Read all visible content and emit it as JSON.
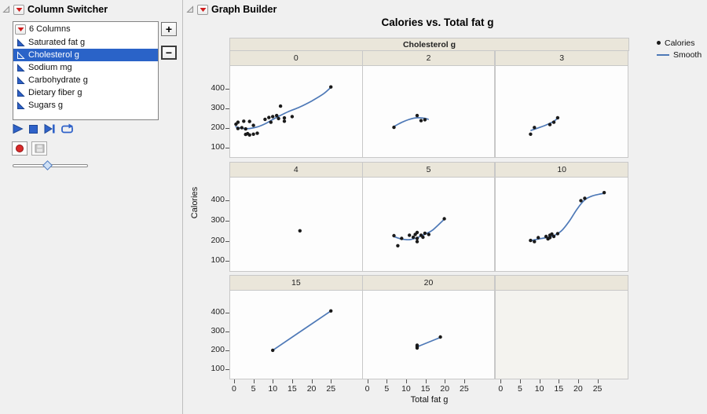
{
  "column_switcher": {
    "title": "Column Switcher",
    "columns_label": "6 Columns",
    "items": [
      {
        "label": "Saturated fat g",
        "selected": false
      },
      {
        "label": "Cholesterol g",
        "selected": true
      },
      {
        "label": "Sodium mg",
        "selected": false
      },
      {
        "label": "Carbohydrate g",
        "selected": false
      },
      {
        "label": "Dietary fiber g",
        "selected": false
      },
      {
        "label": "Sugars g",
        "selected": false
      }
    ],
    "buttons": {
      "add": "+",
      "remove": "−"
    }
  },
  "graph_builder": {
    "title": "Graph Builder"
  },
  "icons": {
    "disclosure_triangle": "⊿",
    "red_triangle_menu": "▼",
    "continuous_column": "◣",
    "play": "▶",
    "stop": "■",
    "step_forward": "▶|",
    "loop": "⟲",
    "record": "●",
    "save": "floppy-disk",
    "add": "+",
    "remove": "−",
    "slider_thumb": "◆"
  },
  "colors": {
    "selection": "#2a63c8",
    "control_blue": "#2f62c9",
    "red_triangle": "#cf1d1d",
    "record_red": "#d92b2b",
    "window_bg": "#f0f0f0"
  },
  "chart_data": {
    "type": "scatter",
    "title": "Calories vs. Total fat g",
    "xlabel": "Total fat g",
    "ylabel": "Calories",
    "facet_by": "Cholesterol g",
    "legend": [
      {
        "label": "Calories",
        "marker": "point",
        "color": "#1a1a1a"
      },
      {
        "label": "Smooth",
        "marker": "line",
        "color": "#4e79b7"
      }
    ],
    "x_ticks": [
      0,
      5,
      10,
      15,
      20,
      25
    ],
    "y_ticks": [
      100,
      200,
      300,
      400
    ],
    "x_domain": [
      -1,
      33
    ],
    "y_domain": [
      50,
      515
    ],
    "grid": false,
    "legend_position": "right",
    "colors": {
      "smooth": "#4e79b7",
      "point": "#1a1a1a",
      "strip_bg": "#eae6da",
      "panel_bg": "#fdfdfd",
      "panel_border": "#c8c8c8"
    },
    "facets": [
      {
        "level": "0",
        "points": [
          [
            0.5,
            218
          ],
          [
            1,
            196
          ],
          [
            1,
            228
          ],
          [
            2,
            200
          ],
          [
            2.5,
            233
          ],
          [
            3,
            166
          ],
          [
            3,
            194
          ],
          [
            3.5,
            170
          ],
          [
            4,
            232
          ],
          [
            4,
            163
          ],
          [
            5,
            167
          ],
          [
            5,
            212
          ],
          [
            6,
            172
          ],
          [
            8,
            243
          ],
          [
            9,
            252
          ],
          [
            9.5,
            228
          ],
          [
            10,
            257
          ],
          [
            11,
            262
          ],
          [
            11.5,
            247
          ],
          [
            12,
            310
          ],
          [
            13,
            250
          ],
          [
            13,
            233
          ],
          [
            15,
            257
          ],
          [
            25,
            408
          ]
        ],
        "smooth": [
          [
            0.3,
            206
          ],
          [
            2,
            197
          ],
          [
            4,
            196
          ],
          [
            6,
            204
          ],
          [
            8,
            220
          ],
          [
            10,
            242
          ],
          [
            12,
            263
          ],
          [
            14,
            282
          ],
          [
            17,
            306
          ],
          [
            20,
            336
          ],
          [
            23,
            372
          ],
          [
            25,
            406
          ]
        ]
      },
      {
        "level": "2",
        "points": [
          [
            7,
            202
          ],
          [
            13,
            262
          ],
          [
            14,
            236
          ],
          [
            15,
            241
          ]
        ],
        "smooth": [
          [
            7,
            206
          ],
          [
            9,
            227
          ],
          [
            11,
            243
          ],
          [
            13,
            251
          ],
          [
            15,
            248
          ],
          [
            16,
            242
          ]
        ]
      },
      {
        "level": "3",
        "points": [
          [
            8,
            167
          ],
          [
            9,
            201
          ],
          [
            13,
            216
          ],
          [
            14,
            228
          ],
          [
            15,
            251
          ]
        ],
        "smooth": [
          [
            8,
            185
          ],
          [
            10,
            199
          ],
          [
            12,
            214
          ],
          [
            14,
            233
          ],
          [
            15,
            249
          ]
        ]
      },
      {
        "level": "4",
        "points": [
          [
            17,
            250
          ]
        ],
        "smooth": []
      },
      {
        "level": "5",
        "points": [
          [
            7,
            226
          ],
          [
            8,
            176
          ],
          [
            9,
            212
          ],
          [
            11,
            228
          ],
          [
            12,
            218
          ],
          [
            12.5,
            232
          ],
          [
            13,
            196
          ],
          [
            13,
            212
          ],
          [
            13,
            242
          ],
          [
            14,
            228
          ],
          [
            14.5,
            218
          ],
          [
            15,
            238
          ],
          [
            16,
            232
          ],
          [
            20,
            310
          ]
        ],
        "smooth": [
          [
            7,
            221
          ],
          [
            9,
            209
          ],
          [
            11,
            206
          ],
          [
            13,
            216
          ],
          [
            15,
            233
          ],
          [
            17,
            254
          ],
          [
            20,
            308
          ]
        ]
      },
      {
        "level": "10",
        "points": [
          [
            8,
            202
          ],
          [
            9,
            196
          ],
          [
            10,
            216
          ],
          [
            12,
            222
          ],
          [
            12.5,
            210
          ],
          [
            13,
            216
          ],
          [
            13,
            228
          ],
          [
            13.5,
            234
          ],
          [
            14,
            222
          ],
          [
            15,
            236
          ],
          [
            21,
            400
          ],
          [
            22,
            412
          ],
          [
            27,
            440
          ]
        ],
        "smooth": [
          [
            8,
            201
          ],
          [
            10,
            209
          ],
          [
            12,
            216
          ],
          [
            14,
            226
          ],
          [
            16,
            250
          ],
          [
            18,
            298
          ],
          [
            20,
            358
          ],
          [
            22,
            404
          ],
          [
            24,
            424
          ],
          [
            27,
            437
          ]
        ]
      },
      {
        "level": "15",
        "points": [
          [
            10,
            200
          ],
          [
            25,
            408
          ]
        ],
        "smooth": [
          [
            10,
            200
          ],
          [
            25,
            408
          ]
        ]
      },
      {
        "level": "20",
        "points": [
          [
            13,
            212
          ],
          [
            13,
            220
          ],
          [
            13,
            227
          ],
          [
            19,
            270
          ]
        ],
        "smooth": [
          [
            13,
            218
          ],
          [
            19,
            268
          ]
        ]
      },
      {
        "level": "",
        "points": [],
        "smooth": []
      }
    ]
  }
}
